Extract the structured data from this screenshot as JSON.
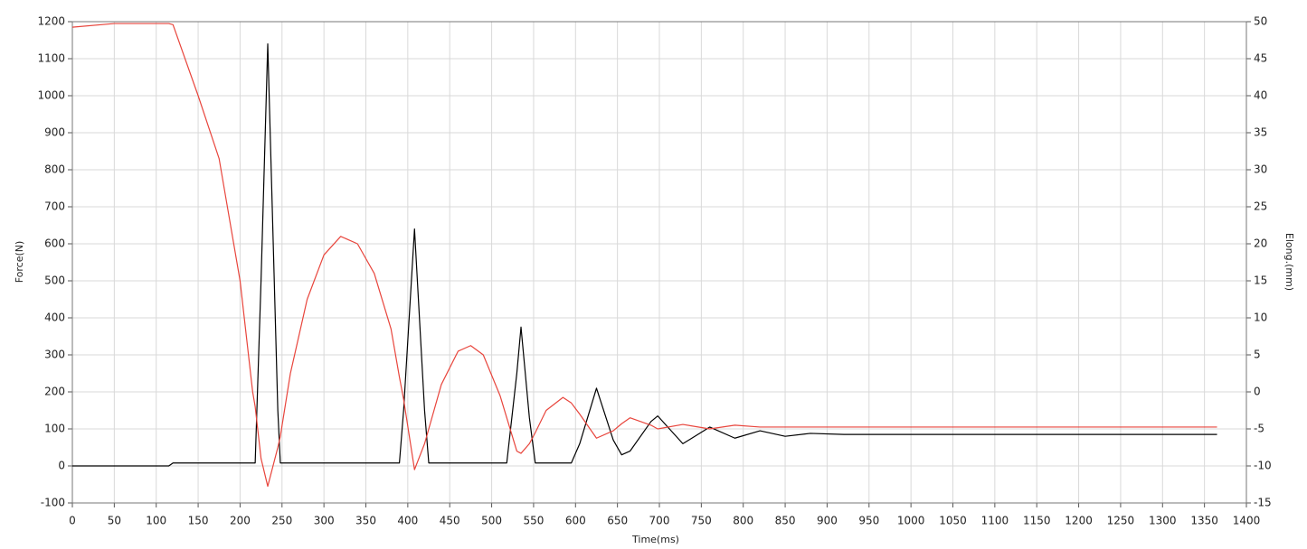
{
  "chart_data": {
    "type": "line",
    "x_label": "Time(ms)",
    "y_label": "Force(N)",
    "y2_label": "Elong.(mm)",
    "x": [
      0,
      50,
      115,
      120,
      150,
      175,
      200,
      215,
      218,
      225,
      233,
      245,
      248,
      260,
      280,
      300,
      320,
      340,
      360,
      380,
      390,
      395,
      408,
      420,
      425,
      440,
      460,
      475,
      490,
      510,
      518,
      530,
      535,
      545,
      552,
      565,
      585,
      595,
      605,
      625,
      645,
      655,
      665,
      690,
      698,
      728,
      760,
      790,
      820,
      850,
      880,
      920,
      1000,
      1100,
      1200,
      1300,
      1365
    ],
    "series": [
      {
        "color": "#000000",
        "values": [
          0,
          0,
          0,
          8,
          8,
          8,
          8,
          8,
          8,
          500,
          1140,
          150,
          8,
          8,
          8,
          8,
          8,
          8,
          8,
          8,
          8,
          150,
          640,
          150,
          8,
          8,
          8,
          8,
          8,
          8,
          8,
          250,
          375,
          130,
          8,
          8,
          8,
          8,
          60,
          210,
          70,
          30,
          40,
          120,
          135,
          60,
          105,
          75,
          95,
          80,
          88,
          85,
          85,
          85,
          85,
          85,
          85
        ]
      },
      {
        "color": "#e8453c",
        "axis": "y2",
        "values": [
          49.25,
          49.75,
          49.75,
          49.6,
          40,
          31.5,
          15,
          0,
          -2,
          -9,
          -12.75,
          -7.5,
          -6,
          2.5,
          12.5,
          18.5,
          21,
          20,
          16,
          8.5,
          2,
          -1,
          -10.5,
          -7,
          -5,
          1,
          5.5,
          6.25,
          5,
          -0.5,
          -3.5,
          -8,
          -8.3,
          -7,
          -5.5,
          -2.5,
          -0.75,
          -1.5,
          -3,
          -6.25,
          -5.25,
          -4.3,
          -3.5,
          -4.5,
          -5,
          -4.4,
          -5,
          -4.5,
          -4.75,
          -4.75,
          -4.75,
          -4.75,
          -4.75,
          -4.75,
          -4.75,
          -4.75,
          -4.75
        ]
      }
    ],
    "xlim": [
      0,
      1400
    ],
    "xticks": [
      0,
      50,
      100,
      150,
      200,
      250,
      300,
      350,
      400,
      450,
      500,
      550,
      600,
      650,
      700,
      750,
      800,
      850,
      900,
      950,
      1000,
      1050,
      1100,
      1150,
      1200,
      1250,
      1300,
      1350,
      1400
    ],
    "ylim": [
      -100,
      1200
    ],
    "yticks": [
      -100,
      0,
      100,
      200,
      300,
      400,
      500,
      600,
      700,
      800,
      900,
      1000,
      1100,
      1200
    ],
    "y2lim": [
      -15,
      50
    ],
    "y2ticks": [
      -15,
      -10,
      -5,
      0,
      5,
      10,
      15,
      20,
      25,
      30,
      35,
      40,
      45,
      50
    ],
    "grid": true
  }
}
